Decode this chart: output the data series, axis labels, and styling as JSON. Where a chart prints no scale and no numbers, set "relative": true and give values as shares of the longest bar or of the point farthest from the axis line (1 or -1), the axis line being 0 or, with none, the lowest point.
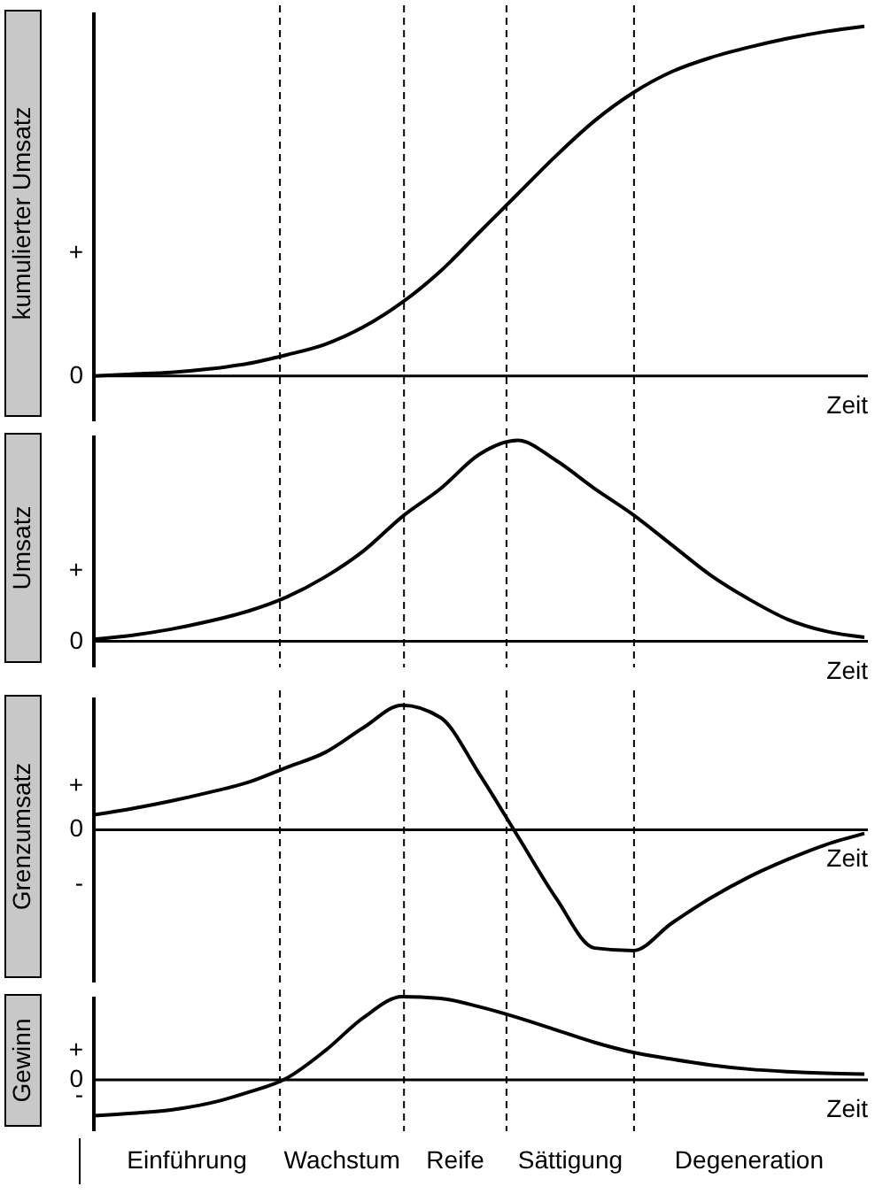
{
  "chart_data": [
    {
      "type": "line",
      "ylabel": "kumulierter Umsatz",
      "xlabel": "Zeit",
      "relative": true,
      "color": "#000000",
      "categories": [
        null,
        null,
        null,
        null,
        null,
        null,
        null,
        null,
        null,
        null,
        null,
        null,
        null,
        null,
        null,
        null,
        null,
        null,
        null,
        null,
        null
      ],
      "values": [
        0,
        0.005,
        0.01,
        0.02,
        0.035,
        0.06,
        0.09,
        0.14,
        0.21,
        0.3,
        0.41,
        0.52,
        0.63,
        0.73,
        0.81,
        0.87,
        0.91,
        0.94,
        0.965,
        0.985,
        1.0
      ],
      "annotations": [
        "+",
        "0"
      ]
    },
    {
      "type": "line",
      "ylabel": "Umsatz",
      "xlabel": "Zeit",
      "relative": true,
      "color": "#000000",
      "categories": [
        null,
        null,
        null,
        null,
        null,
        null,
        null,
        null,
        null,
        null,
        null,
        null,
        null,
        null,
        null,
        null,
        null,
        null,
        null,
        null,
        null
      ],
      "values": [
        0.01,
        0.03,
        0.06,
        0.1,
        0.15,
        0.22,
        0.32,
        0.45,
        0.62,
        0.76,
        0.93,
        1.0,
        0.9,
        0.76,
        0.63,
        0.48,
        0.33,
        0.21,
        0.11,
        0.05,
        0.02
      ],
      "annotations": [
        "+",
        "0"
      ]
    },
    {
      "type": "line",
      "ylabel": "Grenzumsatz",
      "xlabel": "Zeit",
      "relative": true,
      "color": "#000000",
      "categories": [
        null,
        null,
        null,
        null,
        null,
        null,
        null,
        null,
        null,
        null,
        null,
        null,
        null,
        null,
        null,
        null,
        null,
        null,
        null,
        null,
        null
      ],
      "values": [
        0.12,
        0.17,
        0.23,
        0.3,
        0.38,
        0.5,
        0.62,
        0.82,
        1.0,
        0.9,
        0.45,
        -0.05,
        -0.55,
        -0.95,
        -0.97,
        -0.75,
        -0.55,
        -0.38,
        -0.24,
        -0.12,
        -0.03
      ],
      "annotations": [
        "+",
        "0",
        "-"
      ]
    },
    {
      "type": "line",
      "ylabel": "Gewinn",
      "xlabel": "Zeit",
      "relative": true,
      "color": "#000000",
      "categories": [
        null,
        null,
        null,
        null,
        null,
        null,
        null,
        null,
        null,
        null,
        null,
        null,
        null,
        null,
        null,
        null,
        null,
        null,
        null,
        null,
        null
      ],
      "values": [
        -0.43,
        -0.4,
        -0.36,
        -0.28,
        -0.15,
        0.02,
        0.35,
        0.75,
        1.0,
        0.98,
        0.88,
        0.75,
        0.6,
        0.45,
        0.33,
        0.25,
        0.18,
        0.13,
        0.1,
        0.08,
        0.07
      ],
      "annotations": [
        "+",
        "0",
        "-"
      ]
    },
    {
      "type": "other",
      "annotations": [
        "Einführung",
        "Wachstum",
        "Reife",
        "Sättigung",
        "Degeneration"
      ]
    }
  ]
}
